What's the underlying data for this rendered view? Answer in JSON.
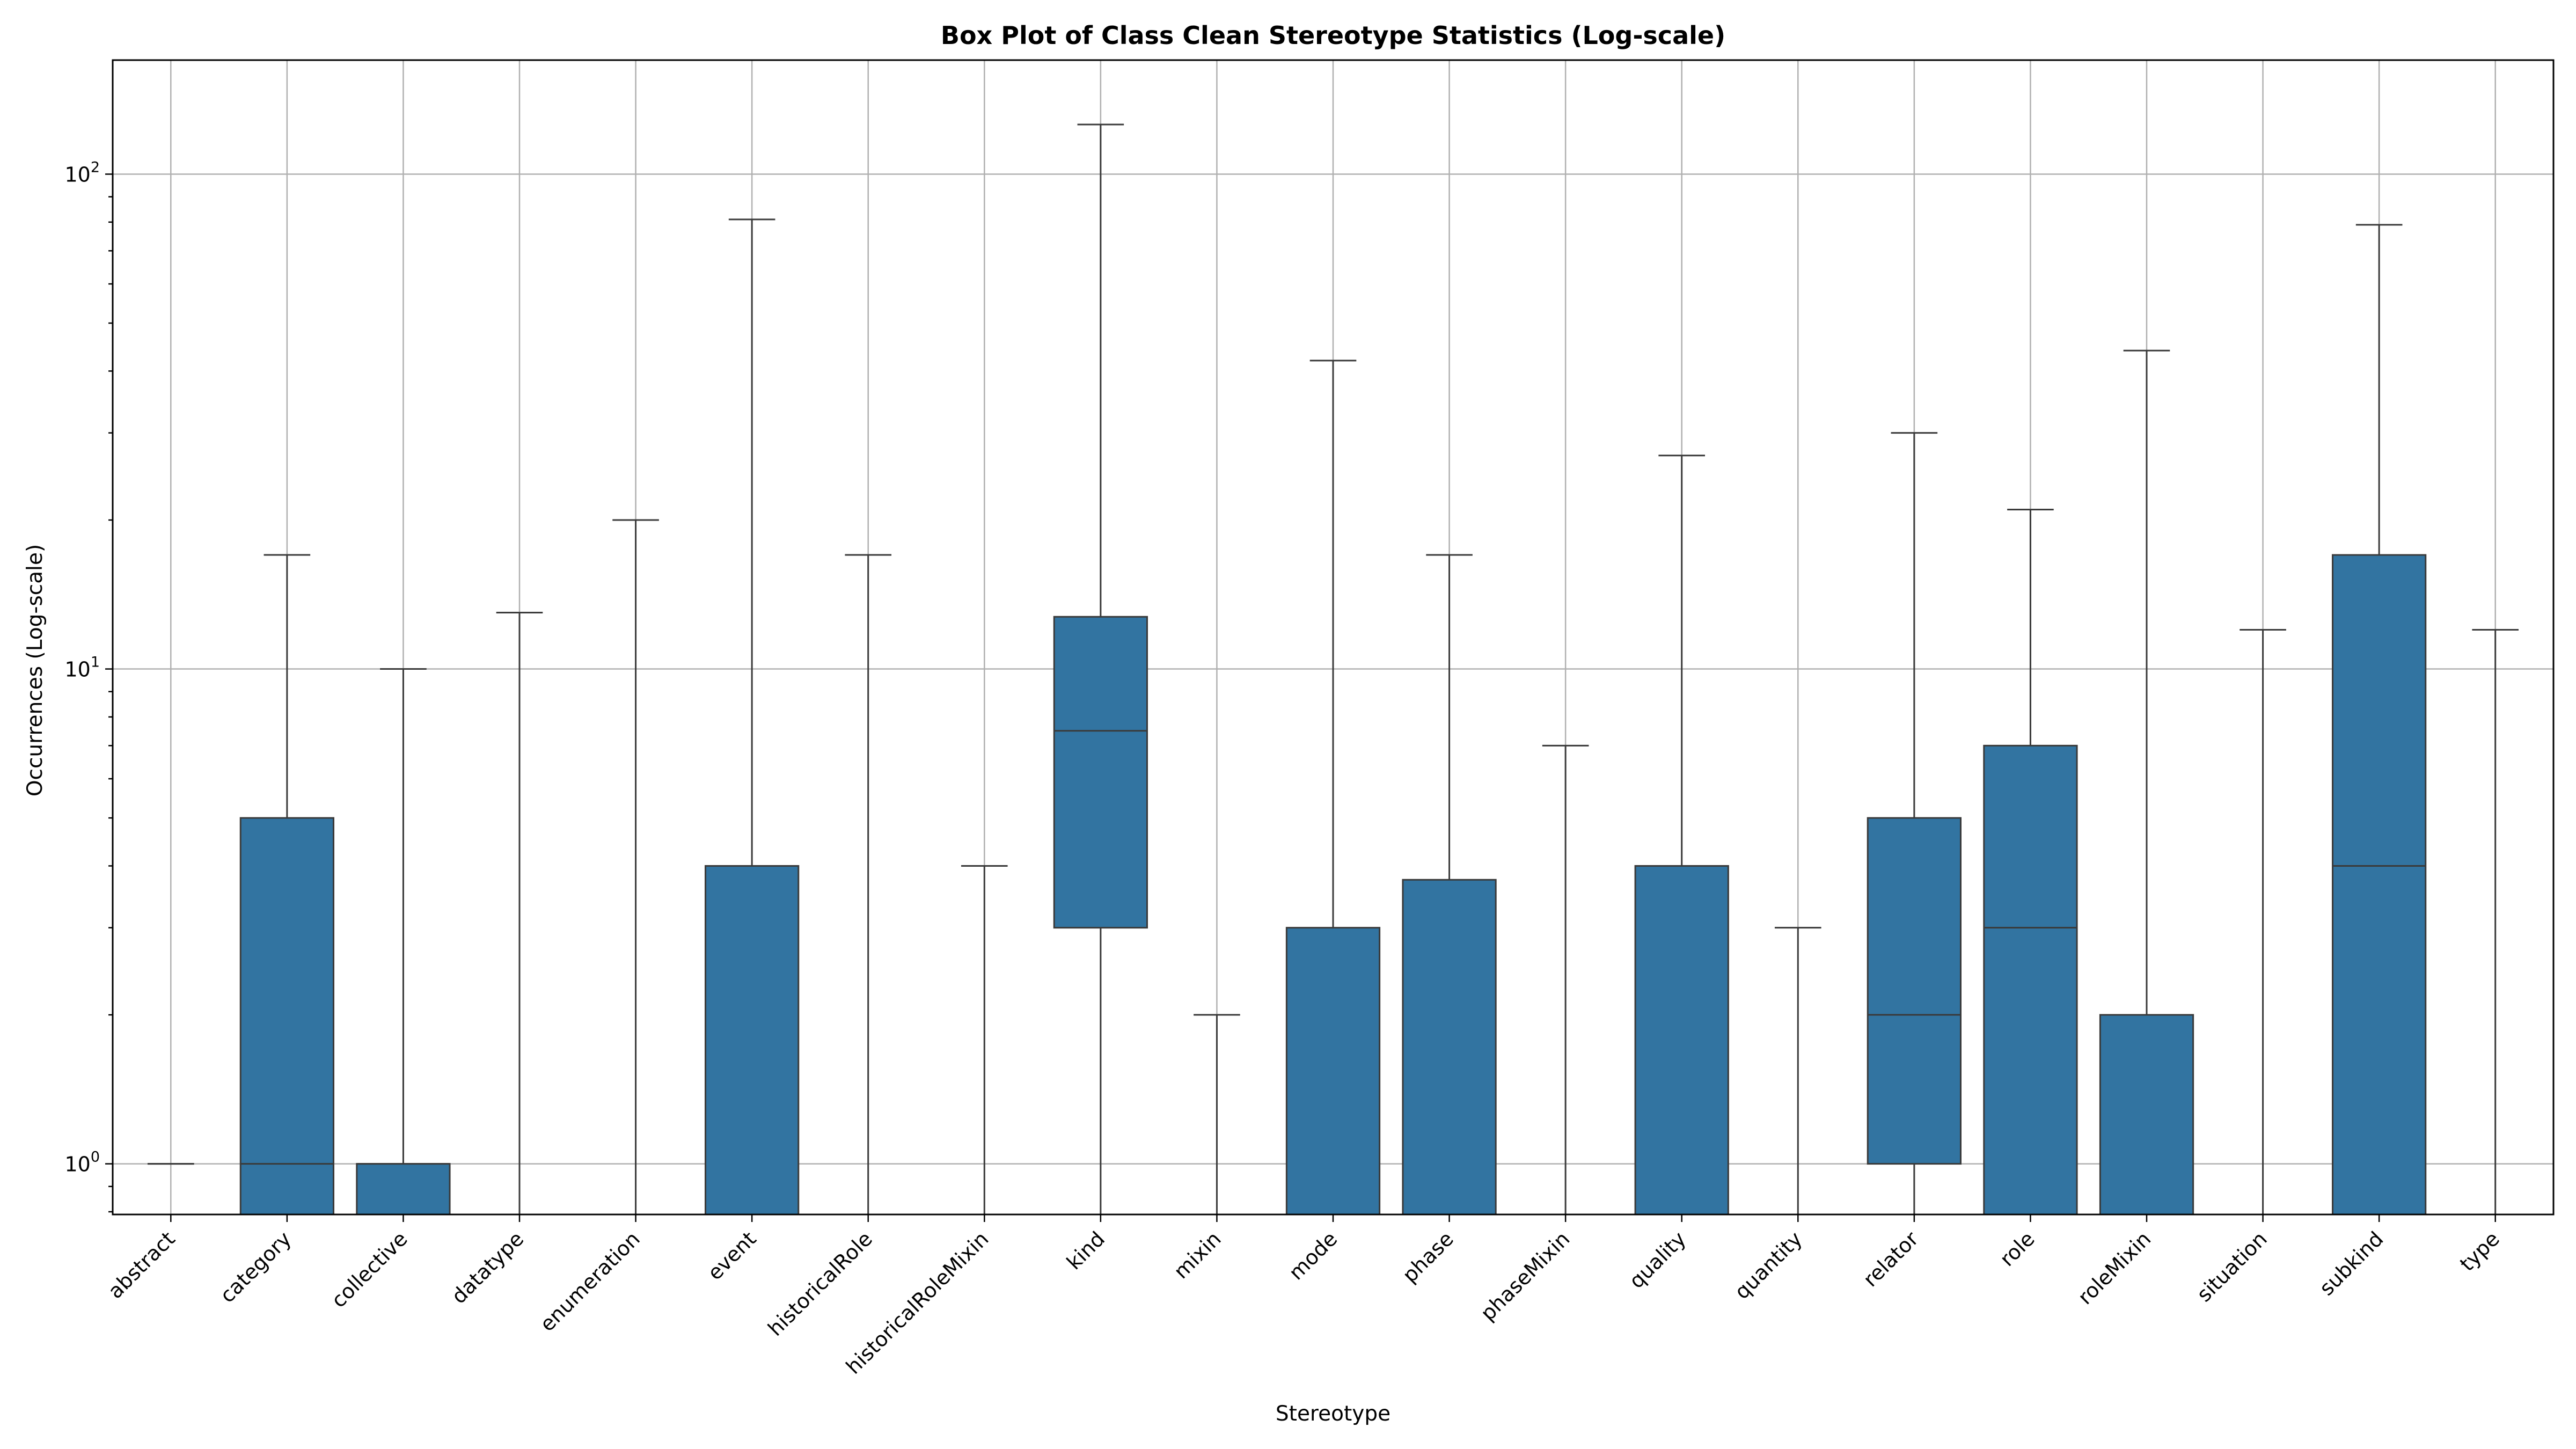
{
  "chart_data": {
    "type": "box",
    "title": "Box Plot of Class Clean Stereotype Statistics (Log-scale)",
    "xlabel": "Stereotype",
    "ylabel": "Occurrences (Log-scale)",
    "yscale": "log",
    "ylim": [
      0.79,
      170
    ],
    "grid": true,
    "box_color": "#3274a1",
    "y_ticks": [
      {
        "value": 1,
        "base": "10",
        "exp": "0"
      },
      {
        "value": 10,
        "base": "10",
        "exp": "1"
      },
      {
        "value": 100,
        "base": "10",
        "exp": "2"
      }
    ],
    "categories": [
      "abstract",
      "category",
      "collective",
      "datatype",
      "enumeration",
      "event",
      "historicalRole",
      "historicalRoleMixin",
      "kind",
      "mixin",
      "mode",
      "phase",
      "phaseMixin",
      "quality",
      "quantity",
      "relator",
      "role",
      "roleMixin",
      "situation",
      "subkind",
      "type"
    ],
    "boxes": [
      {
        "label": "abstract",
        "whislo": 1,
        "q1": 1,
        "med": 1,
        "q3": 1,
        "whishi": 1
      },
      {
        "label": "category",
        "whislo": 0,
        "q1": 0,
        "med": 1,
        "q3": 5,
        "whishi": 17
      },
      {
        "label": "collective",
        "whislo": 0,
        "q1": 0,
        "med": 1,
        "q3": 1,
        "whishi": 10
      },
      {
        "label": "datatype",
        "whislo": 0,
        "q1": 0,
        "med": 0,
        "q3": 0,
        "whishi": 13
      },
      {
        "label": "enumeration",
        "whislo": 0,
        "q1": 0,
        "med": 0,
        "q3": 0,
        "whishi": 20
      },
      {
        "label": "event",
        "whislo": 0,
        "q1": 0,
        "med": 0,
        "q3": 4,
        "whishi": 81
      },
      {
        "label": "historicalRole",
        "whislo": 0,
        "q1": 0,
        "med": 0,
        "q3": 0,
        "whishi": 17
      },
      {
        "label": "historicalRoleMixin",
        "whislo": 0,
        "q1": 0,
        "med": 0,
        "q3": 0,
        "whishi": 4
      },
      {
        "label": "kind",
        "whislo": 0,
        "q1": 3,
        "med": 7.5,
        "q3": 12.75,
        "whishi": 126
      },
      {
        "label": "mixin",
        "whislo": 0,
        "q1": 0,
        "med": 0,
        "q3": 0,
        "whishi": 2
      },
      {
        "label": "mode",
        "whislo": 0,
        "q1": 0,
        "med": 0,
        "q3": 3,
        "whishi": 42
      },
      {
        "label": "phase",
        "whislo": 0,
        "q1": 0,
        "med": 0,
        "q3": 3.75,
        "whishi": 17
      },
      {
        "label": "phaseMixin",
        "whislo": 0,
        "q1": 0,
        "med": 0,
        "q3": 0,
        "whishi": 7
      },
      {
        "label": "quality",
        "whislo": 0,
        "q1": 0,
        "med": 0,
        "q3": 4,
        "whishi": 27
      },
      {
        "label": "quantity",
        "whislo": 0,
        "q1": 0,
        "med": 0,
        "q3": 0,
        "whishi": 3
      },
      {
        "label": "relator",
        "whislo": 0,
        "q1": 1,
        "med": 2,
        "q3": 5,
        "whishi": 30
      },
      {
        "label": "role",
        "whislo": 0,
        "q1": 0,
        "med": 3,
        "q3": 7,
        "whishi": 21
      },
      {
        "label": "roleMixin",
        "whislo": 0,
        "q1": 0,
        "med": 0,
        "q3": 2,
        "whishi": 44
      },
      {
        "label": "situation",
        "whislo": 0,
        "q1": 0,
        "med": 0,
        "q3": 0,
        "whishi": 12
      },
      {
        "label": "subkind",
        "whislo": 0,
        "q1": 0,
        "med": 4,
        "q3": 17,
        "whishi": 79
      },
      {
        "label": "type",
        "whislo": 0,
        "q1": 0,
        "med": 0,
        "q3": 0,
        "whishi": 12
      }
    ]
  }
}
